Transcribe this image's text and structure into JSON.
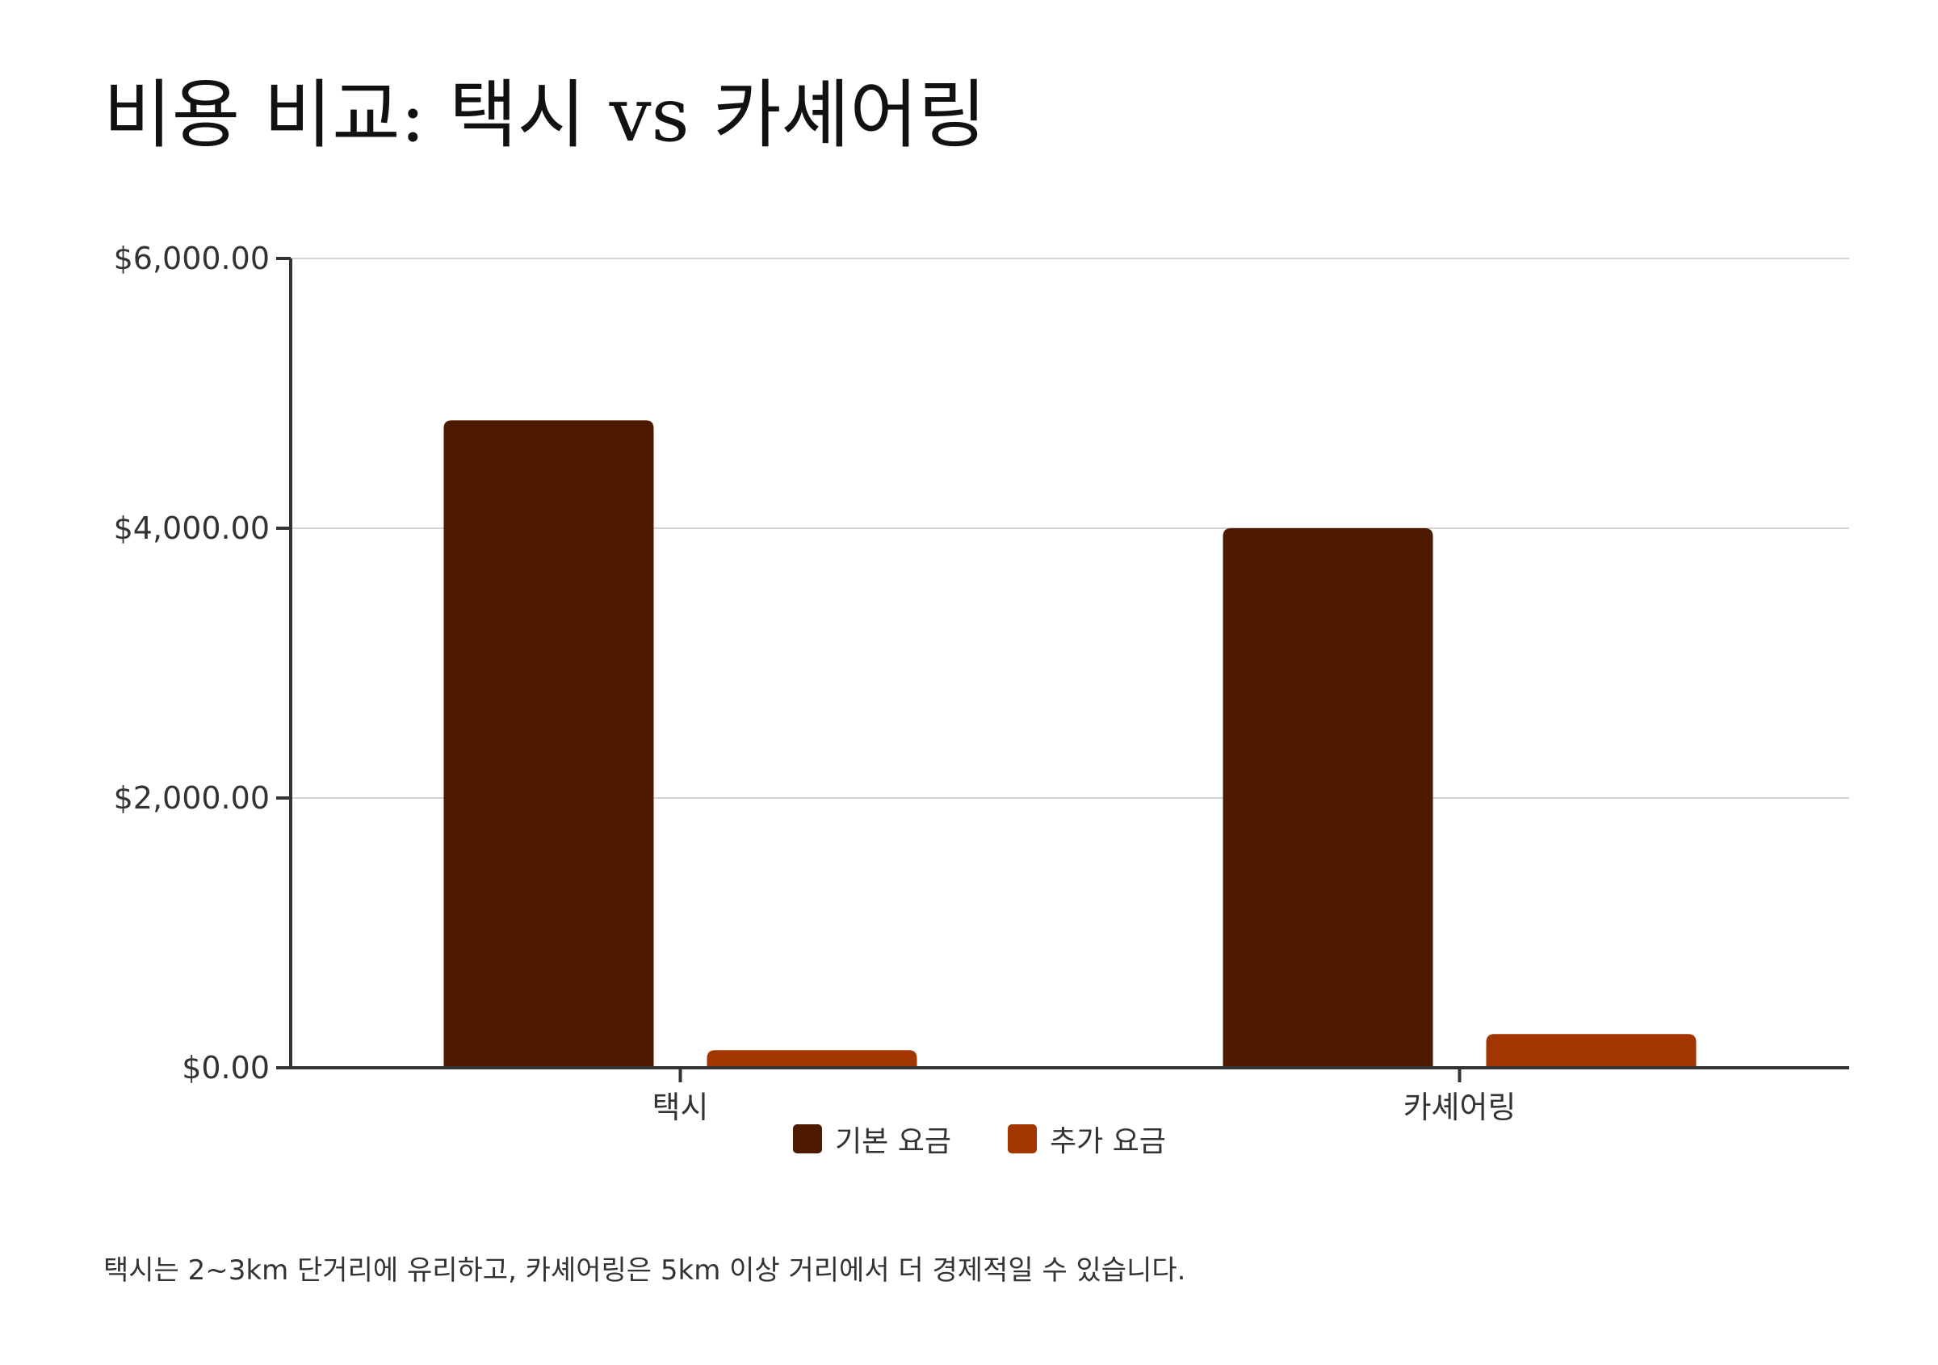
{
  "title": "비용 비교: 택시 vs 카셰어링",
  "note": "택시는 2~3km 단거리에 유리하고, 카셰어링은 5km 이상 거리에서 더 경제적일 수 있습니다.",
  "colors": {
    "base": "#4d1a00",
    "extra": "#a33600",
    "axis": "#333333",
    "grid": "#d3d3d3"
  },
  "chart_data": {
    "type": "bar",
    "title": "비용 비교: 택시 vs 카셰어링",
    "xlabel": "",
    "ylabel": "",
    "categories": [
      "택시",
      "카셰어링"
    ],
    "series": [
      {
        "name": "기본 요금",
        "values": [
          4800,
          4000
        ]
      },
      {
        "name": "추가 요금",
        "values": [
          130,
          250
        ]
      }
    ],
    "ylim": [
      0,
      6000
    ],
    "yticks": [
      0,
      2000,
      4000,
      6000
    ],
    "ytick_labels": [
      "$0.00",
      "$2,000.00",
      "$4,000.00",
      "$6,000.00"
    ],
    "grid": true,
    "legend_position": "bottom"
  }
}
